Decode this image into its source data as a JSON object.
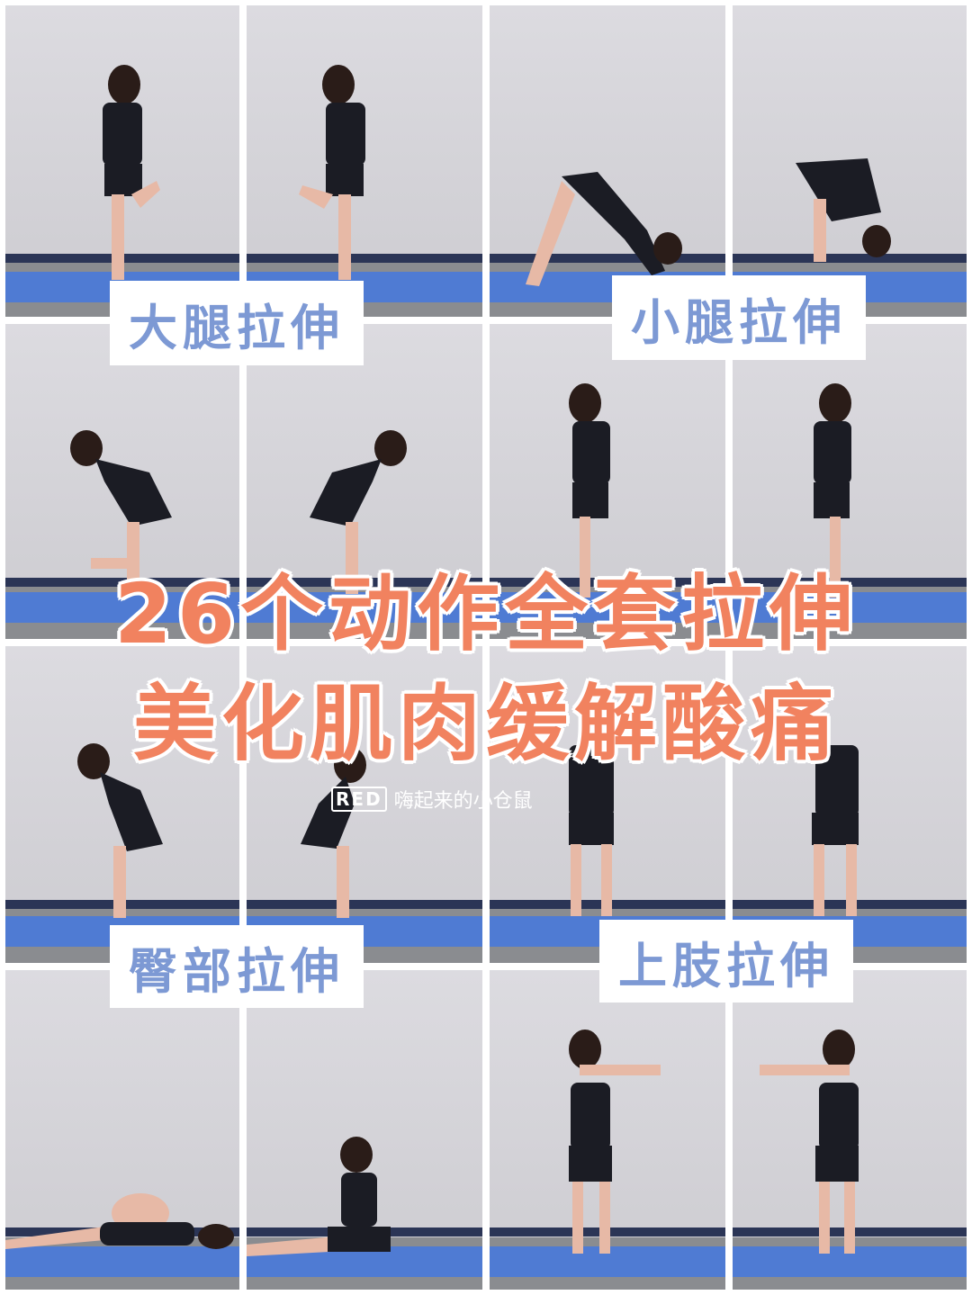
{
  "labels": {
    "thigh": "大腿拉伸",
    "calf": "小腿拉伸",
    "glute": "臀部拉伸",
    "upper": "上肢拉伸"
  },
  "headline": {
    "line1": "26个动作全套拉伸",
    "line2": "美化肌肉缓解酸痛"
  },
  "watermark": {
    "badge": "RED",
    "author": "嗨起来的小仓鼠"
  }
}
